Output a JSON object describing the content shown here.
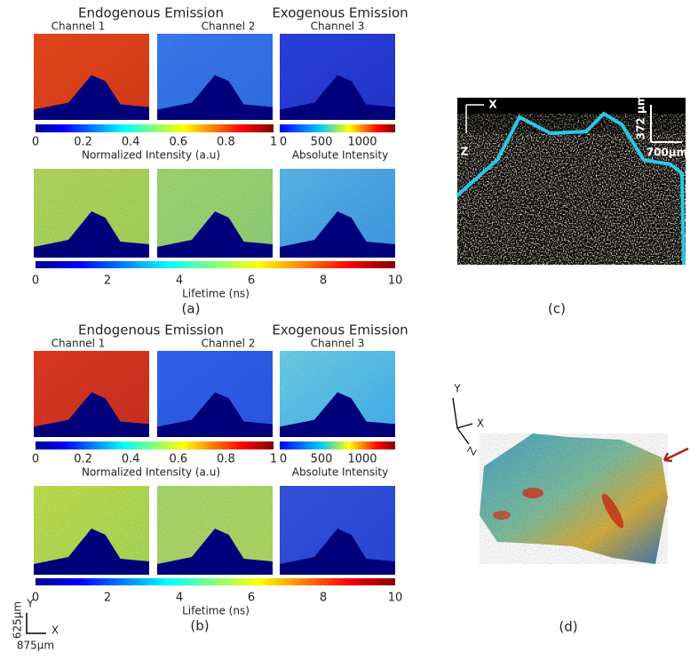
{
  "panels": [
    {
      "label": "(a)",
      "headings": [
        "Endogenous Emission",
        "Exogenous Emission"
      ],
      "channels": [
        "Channel 1",
        "Channel 2",
        "Channel 3"
      ],
      "intensity_ticks": [
        0,
        0.2,
        0.4,
        0.6,
        0.8,
        1
      ],
      "intensity_label": "Normalized Intensity (a.u)",
      "absolute_ticks": [
        0,
        500,
        1000
      ],
      "absolute_label": "Absolute Intensity",
      "lifetime_ticks": [
        0,
        2,
        4,
        6,
        8,
        10
      ],
      "lifetime_label": "Lifetime (ns)"
    },
    {
      "label": "(b)",
      "headings": [
        "Endogenous Emission",
        "Exogenous Emission"
      ],
      "channels": [
        "Channel 1",
        "Channel 2",
        "Channel 3"
      ],
      "intensity_ticks": [
        0,
        0.2,
        0.4,
        0.6,
        0.8,
        1
      ],
      "intensity_label": "Normalized Intensity (a.u)",
      "absolute_ticks": [
        0,
        500,
        1000
      ],
      "absolute_label": "Absolute Intensity",
      "lifetime_ticks": [
        0,
        2,
        4,
        6,
        8,
        10
      ],
      "lifetime_label": "Lifetime (ns)"
    }
  ],
  "scale_bar": {
    "y": "Y",
    "x": "X",
    "y_length": "625µm",
    "x_length": "875µm"
  },
  "oct": {
    "label": "(c)",
    "x_axis": "X",
    "z_axis": "Z",
    "depth_scale": "372 µm",
    "width_scale": "700µm"
  },
  "render": {
    "label": "(d)",
    "axes": [
      "Y",
      "X",
      "Z"
    ]
  }
}
